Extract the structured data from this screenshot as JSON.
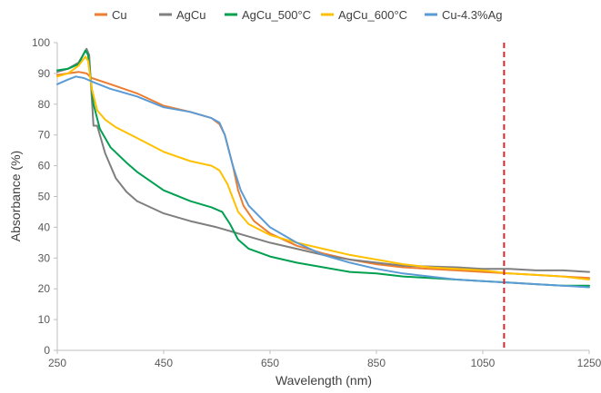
{
  "chart_data": {
    "type": "line",
    "title": "",
    "xlabel": "Wavelength (nm)",
    "ylabel": "Absorbance (%)",
    "xlim": [
      250,
      1250
    ],
    "ylim": [
      0,
      100
    ],
    "x_ticks": [
      250,
      450,
      650,
      850,
      1050,
      1250
    ],
    "y_ticks": [
      0,
      10,
      20,
      30,
      40,
      50,
      60,
      70,
      80,
      90,
      100
    ],
    "grid": false,
    "legend_position": "top",
    "reference_line": {
      "x": 1090,
      "color": "#d62728",
      "style": "dashed"
    },
    "series": [
      {
        "name": "Cu",
        "color": "#ed7d31",
        "points": [
          [
            250,
            89.5
          ],
          [
            270,
            90
          ],
          [
            290,
            90.5
          ],
          [
            305,
            90
          ],
          [
            315,
            88.5
          ],
          [
            350,
            86.5
          ],
          [
            400,
            83.5
          ],
          [
            450,
            79.5
          ],
          [
            500,
            77.5
          ],
          [
            540,
            75.5
          ],
          [
            555,
            73.5
          ],
          [
            565,
            70
          ],
          [
            580,
            60
          ],
          [
            590,
            52
          ],
          [
            600,
            47
          ],
          [
            620,
            42
          ],
          [
            650,
            38
          ],
          [
            700,
            34
          ],
          [
            750,
            31.5
          ],
          [
            800,
            29.5
          ],
          [
            850,
            28
          ],
          [
            900,
            27
          ],
          [
            950,
            26.5
          ],
          [
            1000,
            26
          ],
          [
            1050,
            25.5
          ],
          [
            1100,
            25
          ],
          [
            1150,
            24.5
          ],
          [
            1200,
            24
          ],
          [
            1250,
            23.5
          ]
        ]
      },
      {
        "name": "AgCu",
        "color": "#7f7f7f",
        "points": [
          [
            250,
            90.5
          ],
          [
            270,
            91.5
          ],
          [
            290,
            93.5
          ],
          [
            305,
            98
          ],
          [
            310,
            96
          ],
          [
            318,
            73
          ],
          [
            325,
            73
          ],
          [
            340,
            64
          ],
          [
            360,
            56
          ],
          [
            380,
            51.5
          ],
          [
            400,
            48.5
          ],
          [
            450,
            44.5
          ],
          [
            500,
            42
          ],
          [
            550,
            40
          ],
          [
            600,
            37.5
          ],
          [
            650,
            35
          ],
          [
            700,
            33
          ],
          [
            750,
            31
          ],
          [
            800,
            29.5
          ],
          [
            850,
            28.5
          ],
          [
            900,
            27.5
          ],
          [
            1000,
            27
          ],
          [
            1050,
            26.5
          ],
          [
            1100,
            26.5
          ],
          [
            1150,
            26
          ],
          [
            1200,
            26
          ],
          [
            1250,
            25.5
          ]
        ]
      },
      {
        "name": "AgCu_500°C",
        "color": "#00a050",
        "points": [
          [
            250,
            91
          ],
          [
            270,
            91.5
          ],
          [
            290,
            93
          ],
          [
            303,
            97.5
          ],
          [
            308,
            96
          ],
          [
            318,
            80
          ],
          [
            330,
            72
          ],
          [
            350,
            66
          ],
          [
            380,
            61
          ],
          [
            400,
            58
          ],
          [
            450,
            52
          ],
          [
            500,
            48.5
          ],
          [
            540,
            46.5
          ],
          [
            560,
            45
          ],
          [
            575,
            41
          ],
          [
            590,
            36
          ],
          [
            610,
            33
          ],
          [
            650,
            30.5
          ],
          [
            700,
            28.5
          ],
          [
            750,
            27
          ],
          [
            800,
            25.5
          ],
          [
            850,
            25
          ],
          [
            900,
            24
          ],
          [
            950,
            23.5
          ],
          [
            1000,
            23
          ],
          [
            1050,
            22.5
          ],
          [
            1100,
            22
          ],
          [
            1150,
            21.5
          ],
          [
            1200,
            21
          ],
          [
            1250,
            21
          ]
        ]
      },
      {
        "name": "AgCu_600°C",
        "color": "#ffc000",
        "points": [
          [
            250,
            89
          ],
          [
            270,
            90
          ],
          [
            290,
            92.5
          ],
          [
            303,
            95.5
          ],
          [
            308,
            94
          ],
          [
            315,
            85
          ],
          [
            325,
            78
          ],
          [
            340,
            75
          ],
          [
            360,
            72.5
          ],
          [
            400,
            69
          ],
          [
            450,
            64.5
          ],
          [
            500,
            61.5
          ],
          [
            540,
            60
          ],
          [
            555,
            58.5
          ],
          [
            570,
            54
          ],
          [
            590,
            45
          ],
          [
            610,
            41
          ],
          [
            650,
            37.5
          ],
          [
            700,
            35
          ],
          [
            750,
            33
          ],
          [
            800,
            31
          ],
          [
            850,
            29.5
          ],
          [
            900,
            28
          ],
          [
            950,
            27
          ],
          [
            1000,
            26.5
          ],
          [
            1050,
            26
          ],
          [
            1100,
            25
          ],
          [
            1150,
            24.5
          ],
          [
            1200,
            24
          ],
          [
            1250,
            23
          ]
        ]
      },
      {
        "name": "Cu-4.3%Ag",
        "color": "#5b9bd5",
        "points": [
          [
            250,
            86.5
          ],
          [
            270,
            88
          ],
          [
            285,
            89
          ],
          [
            300,
            88.5
          ],
          [
            320,
            87
          ],
          [
            350,
            85
          ],
          [
            400,
            82.5
          ],
          [
            450,
            79
          ],
          [
            500,
            77.5
          ],
          [
            540,
            75.5
          ],
          [
            555,
            74
          ],
          [
            565,
            70
          ],
          [
            580,
            60
          ],
          [
            595,
            52
          ],
          [
            610,
            47
          ],
          [
            650,
            40
          ],
          [
            700,
            35
          ],
          [
            750,
            31
          ],
          [
            800,
            28.5
          ],
          [
            850,
            26.5
          ],
          [
            900,
            25
          ],
          [
            950,
            24
          ],
          [
            1000,
            23
          ],
          [
            1050,
            22.5
          ],
          [
            1100,
            22
          ],
          [
            1150,
            21.5
          ],
          [
            1200,
            21
          ],
          [
            1250,
            20.5
          ]
        ]
      }
    ]
  }
}
